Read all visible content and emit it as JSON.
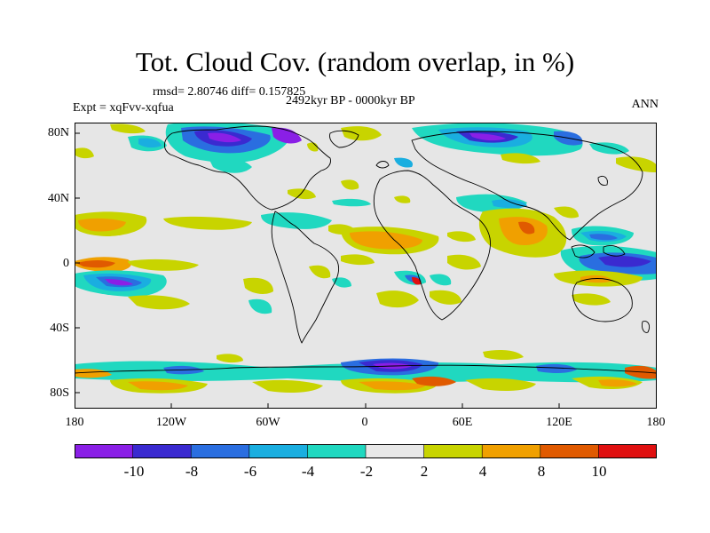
{
  "title": "Tot. Cloud Cov. (random overlap, in %)",
  "stats_line": "rmsd= 2.80746 diff= 0.157825",
  "experiment_line": "Expt = xqFvv-xqfua",
  "period_line": "2492kyr BP - 0000kyr BP",
  "season_line": "ANN",
  "lat_ticks": [
    "80N",
    "40N",
    "0",
    "40S",
    "80S"
  ],
  "lon_ticks": [
    "180",
    "120W",
    "60W",
    "0",
    "60E",
    "120E",
    "180"
  ],
  "colorbar_labels": [
    "-10",
    "-8",
    "-6",
    "-4",
    "-2",
    "2",
    "4",
    "8",
    "10"
  ],
  "colorbar_colors": [
    "#8a1fe6",
    "#3a2ad0",
    "#2a6ee0",
    "#1aaee0",
    "#20d8c0",
    "#e8e8e8",
    "#c8d400",
    "#f0a000",
    "#e05a00",
    "#e01010"
  ],
  "background_color": "#e6e6e6"
}
